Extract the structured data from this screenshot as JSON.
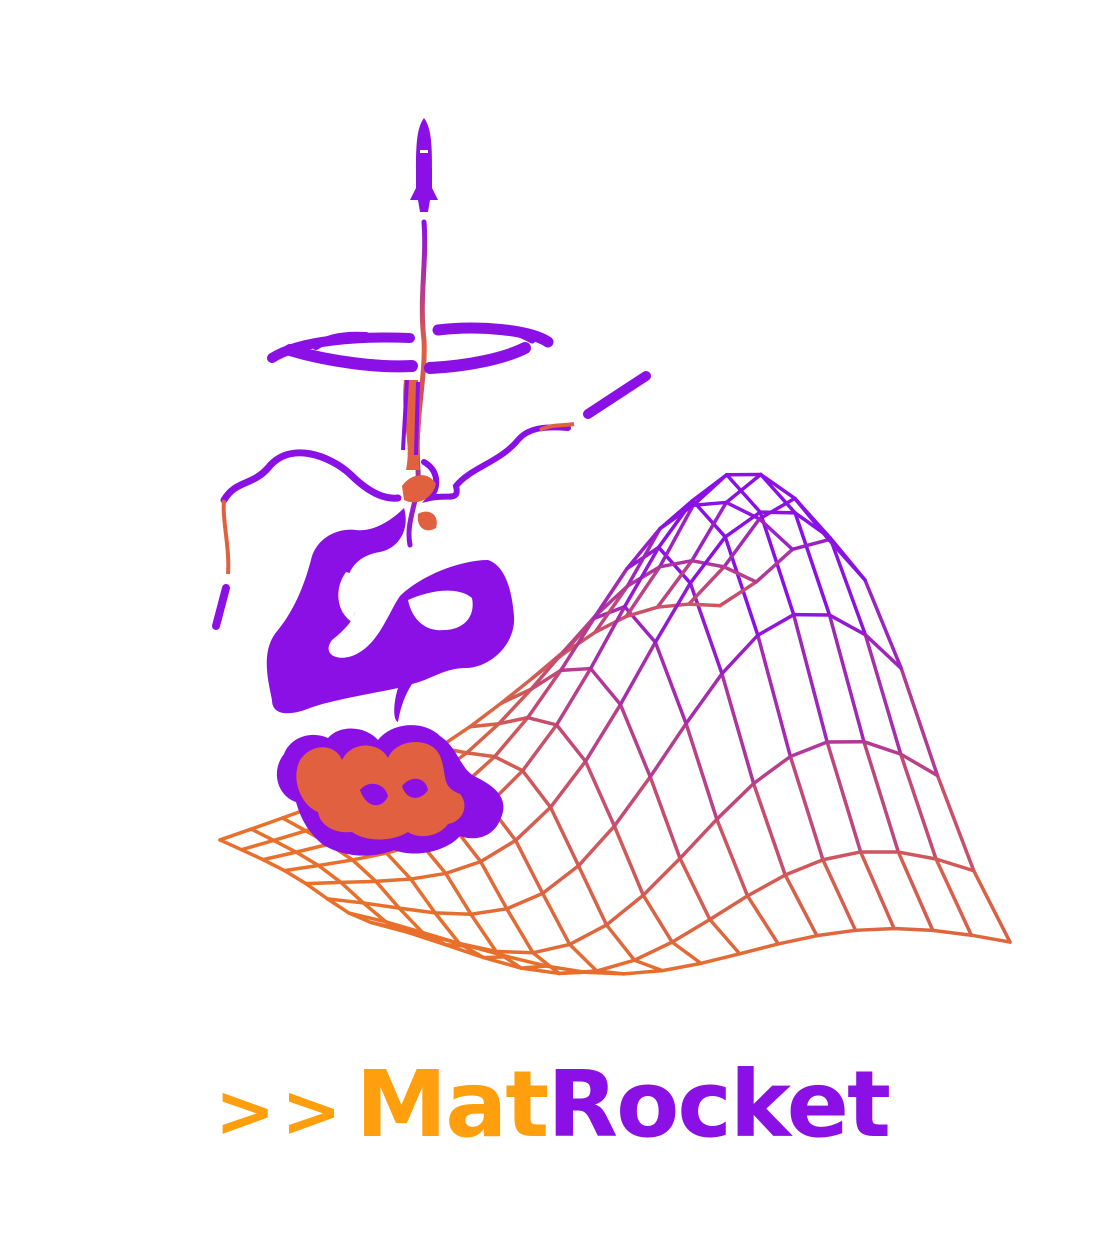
{
  "colors": {
    "purple": "#8a10e6",
    "orange": "#ff9f0e",
    "smoke_orange": "#e0603f",
    "background": "#ffffff"
  },
  "logo": {
    "prompt": ">>",
    "name_part1": "Mat",
    "name_part2": "Rocket"
  },
  "art": {
    "elements": [
      "rocket-icon",
      "exhaust-trail",
      "smoke-ring",
      "smoke-cloud",
      "launch-fireball",
      "wireframe-surface"
    ]
  }
}
